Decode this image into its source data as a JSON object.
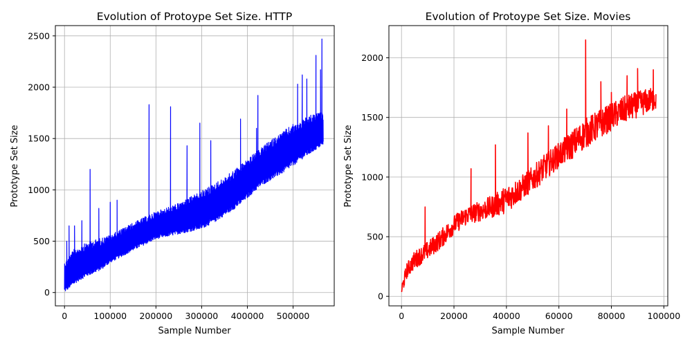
{
  "chart_data": [
    {
      "type": "line",
      "title": "Evolution of Protoype Set Size. HTTP",
      "xlabel": "Sample Number",
      "ylabel": "Prototype Set Size",
      "xlim": [
        -20000,
        590000
      ],
      "ylim": [
        -130,
        2600
      ],
      "xticks": [
        0,
        100000,
        200000,
        300000,
        400000,
        500000
      ],
      "yticks": [
        0,
        500,
        1000,
        1500,
        2000,
        2500
      ],
      "grid": true,
      "color": "#0000ff",
      "x_end": 566000,
      "lower_envelope": [
        [
          0,
          0
        ],
        [
          10000,
          40
        ],
        [
          30000,
          110
        ],
        [
          50000,
          160
        ],
        [
          80000,
          220
        ],
        [
          100000,
          290
        ],
        [
          150000,
          410
        ],
        [
          200000,
          520
        ],
        [
          250000,
          570
        ],
        [
          300000,
          620
        ],
        [
          330000,
          690
        ],
        [
          380000,
          840
        ],
        [
          430000,
          1040
        ],
        [
          480000,
          1170
        ],
        [
          520000,
          1300
        ],
        [
          566000,
          1440
        ]
      ],
      "upper_envelope": [
        [
          0,
          300
        ],
        [
          20000,
          420
        ],
        [
          50000,
          490
        ],
        [
          100000,
          560
        ],
        [
          150000,
          680
        ],
        [
          200000,
          790
        ],
        [
          250000,
          870
        ],
        [
          300000,
          990
        ],
        [
          350000,
          1120
        ],
        [
          400000,
          1300
        ],
        [
          450000,
          1480
        ],
        [
          500000,
          1640
        ],
        [
          540000,
          1730
        ],
        [
          566000,
          1760
        ]
      ],
      "spikes": [
        [
          5000,
          500
        ],
        [
          10000,
          650
        ],
        [
          22000,
          650
        ],
        [
          38000,
          700
        ],
        [
          56000,
          1200
        ],
        [
          75000,
          820
        ],
        [
          100000,
          880
        ],
        [
          115000,
          900
        ],
        [
          185000,
          1830
        ],
        [
          232000,
          1810
        ],
        [
          268000,
          1430
        ],
        [
          296000,
          1650
        ],
        [
          320000,
          1480
        ],
        [
          385000,
          1690
        ],
        [
          420000,
          1600
        ],
        [
          423000,
          1920
        ],
        [
          510000,
          2030
        ],
        [
          520000,
          2120
        ],
        [
          530000,
          2080
        ],
        [
          550000,
          2310
        ],
        [
          560000,
          2170
        ],
        [
          563000,
          2470
        ]
      ]
    },
    {
      "type": "line",
      "title": "Evolution of Protoype Set Size. Movies",
      "xlabel": "Sample Number",
      "ylabel": "Prototype Set Size",
      "xlim": [
        -4800,
        101500
      ],
      "ylim": [
        -80,
        2270
      ],
      "xticks": [
        0,
        20000,
        40000,
        60000,
        80000,
        100000
      ],
      "yticks": [
        0,
        500,
        1000,
        1500,
        2000
      ],
      "grid": true,
      "color": "#ff0000",
      "x_end": 97000,
      "lower_envelope": [
        [
          0,
          0
        ],
        [
          2000,
          150
        ],
        [
          5000,
          230
        ],
        [
          10000,
          310
        ],
        [
          15000,
          400
        ],
        [
          20000,
          520
        ],
        [
          25000,
          600
        ],
        [
          30000,
          630
        ],
        [
          35000,
          660
        ],
        [
          40000,
          700
        ],
        [
          45000,
          790
        ],
        [
          50000,
          880
        ],
        [
          55000,
          980
        ],
        [
          60000,
          1080
        ],
        [
          65000,
          1150
        ],
        [
          70000,
          1240
        ],
        [
          75000,
          1310
        ],
        [
          80000,
          1390
        ],
        [
          85000,
          1450
        ],
        [
          90000,
          1500
        ],
        [
          97000,
          1560
        ]
      ],
      "upper_envelope": [
        [
          0,
          100
        ],
        [
          2000,
          280
        ],
        [
          5000,
          380
        ],
        [
          10000,
          460
        ],
        [
          15000,
          560
        ],
        [
          20000,
          680
        ],
        [
          25000,
          760
        ],
        [
          30000,
          800
        ],
        [
          35000,
          850
        ],
        [
          40000,
          930
        ],
        [
          45000,
          1000
        ],
        [
          50000,
          1090
        ],
        [
          55000,
          1200
        ],
        [
          60000,
          1290
        ],
        [
          65000,
          1390
        ],
        [
          70000,
          1490
        ],
        [
          75000,
          1560
        ],
        [
          80000,
          1620
        ],
        [
          85000,
          1680
        ],
        [
          90000,
          1720
        ],
        [
          97000,
          1760
        ]
      ],
      "spikes": [
        [
          9000,
          750
        ],
        [
          26500,
          1070
        ],
        [
          35800,
          1270
        ],
        [
          48200,
          1370
        ],
        [
          56000,
          1430
        ],
        [
          63000,
          1570
        ],
        [
          70200,
          2150
        ],
        [
          76000,
          1800
        ],
        [
          80000,
          1710
        ],
        [
          86000,
          1850
        ],
        [
          90000,
          1910
        ],
        [
          96000,
          1900
        ]
      ]
    }
  ]
}
